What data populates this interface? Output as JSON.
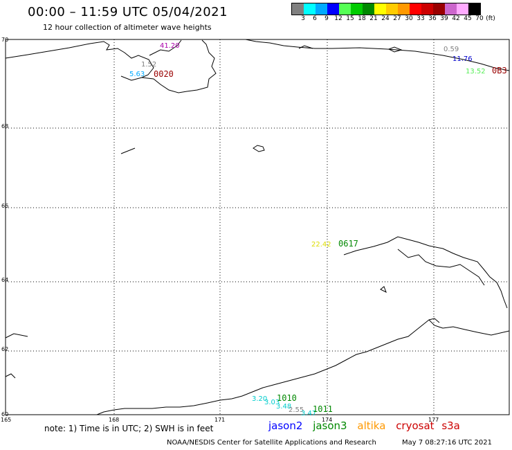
{
  "header": {
    "title": "00:00 – 11:59 UTC 05/04/2021",
    "subtitle": "12 hour collection of altimeter wave heights"
  },
  "colorbar": {
    "colors": [
      "#808080",
      "#00ffff",
      "#00aaff",
      "#0000ff",
      "#55ff55",
      "#00cc00",
      "#008800",
      "#ffff00",
      "#ffcc00",
      "#ff9900",
      "#ff0000",
      "#cc0000",
      "#990000",
      "#cc66cc",
      "#ffaaff",
      "#000000"
    ],
    "labels": [
      "3",
      "6",
      "9",
      "12",
      "15",
      "18",
      "21",
      "24",
      "27",
      "30",
      "33",
      "36",
      "39",
      "42",
      "45",
      "70"
    ],
    "unit": "(ft)"
  },
  "map": {
    "lat_labels": [
      "70",
      "68",
      "66",
      "64",
      "62",
      "60"
    ],
    "lon_labels": [
      "165",
      "168",
      "171",
      "174",
      "177"
    ]
  },
  "observations": [
    {
      "text": "41.20",
      "color": "#aa00aa"
    },
    {
      "text": "1.52",
      "color": "#808080"
    },
    {
      "text": "5.63",
      "color": "#00aaff"
    },
    {
      "text": "0.59",
      "color": "#808080"
    },
    {
      "text": "11.76",
      "color": "#0000cc"
    },
    {
      "text": "13.52",
      "color": "#55ee55"
    },
    {
      "text": "22.42",
      "color": "#dddd00"
    },
    {
      "text": "3.20",
      "color": "#00cccc"
    },
    {
      "text": "3.03",
      "color": "#00cccc"
    },
    {
      "text": "3.48",
      "color": "#00cccc"
    },
    {
      "text": "2.55",
      "color": "#808080"
    },
    {
      "text": "3.47",
      "color": "#00cccc"
    }
  ],
  "passes": [
    {
      "text": "0020",
      "color": "#990000"
    },
    {
      "text": "0B3",
      "color": "#990000"
    },
    {
      "text": "0617",
      "color": "#008800"
    },
    {
      "text": "1010",
      "color": "#008800"
    },
    {
      "text": "1011",
      "color": "#008800"
    }
  ],
  "footer": {
    "note": "note:  1) Time is in UTC;  2) SWH is in feet",
    "satellites": [
      {
        "name": "jason2",
        "color": "#0000ff"
      },
      {
        "name": "jason3",
        "color": "#008800"
      },
      {
        "name": "altika",
        "color": "#ff9900"
      },
      {
        "name": "cryosat",
        "color": "#cc0000"
      },
      {
        "name": "s3a",
        "color": "#cc0000"
      }
    ],
    "credit": "NOAA/NESDIS Center for Satellite Applications and Research",
    "timestamp": "May  7 08:27:16 UTC 2021"
  }
}
